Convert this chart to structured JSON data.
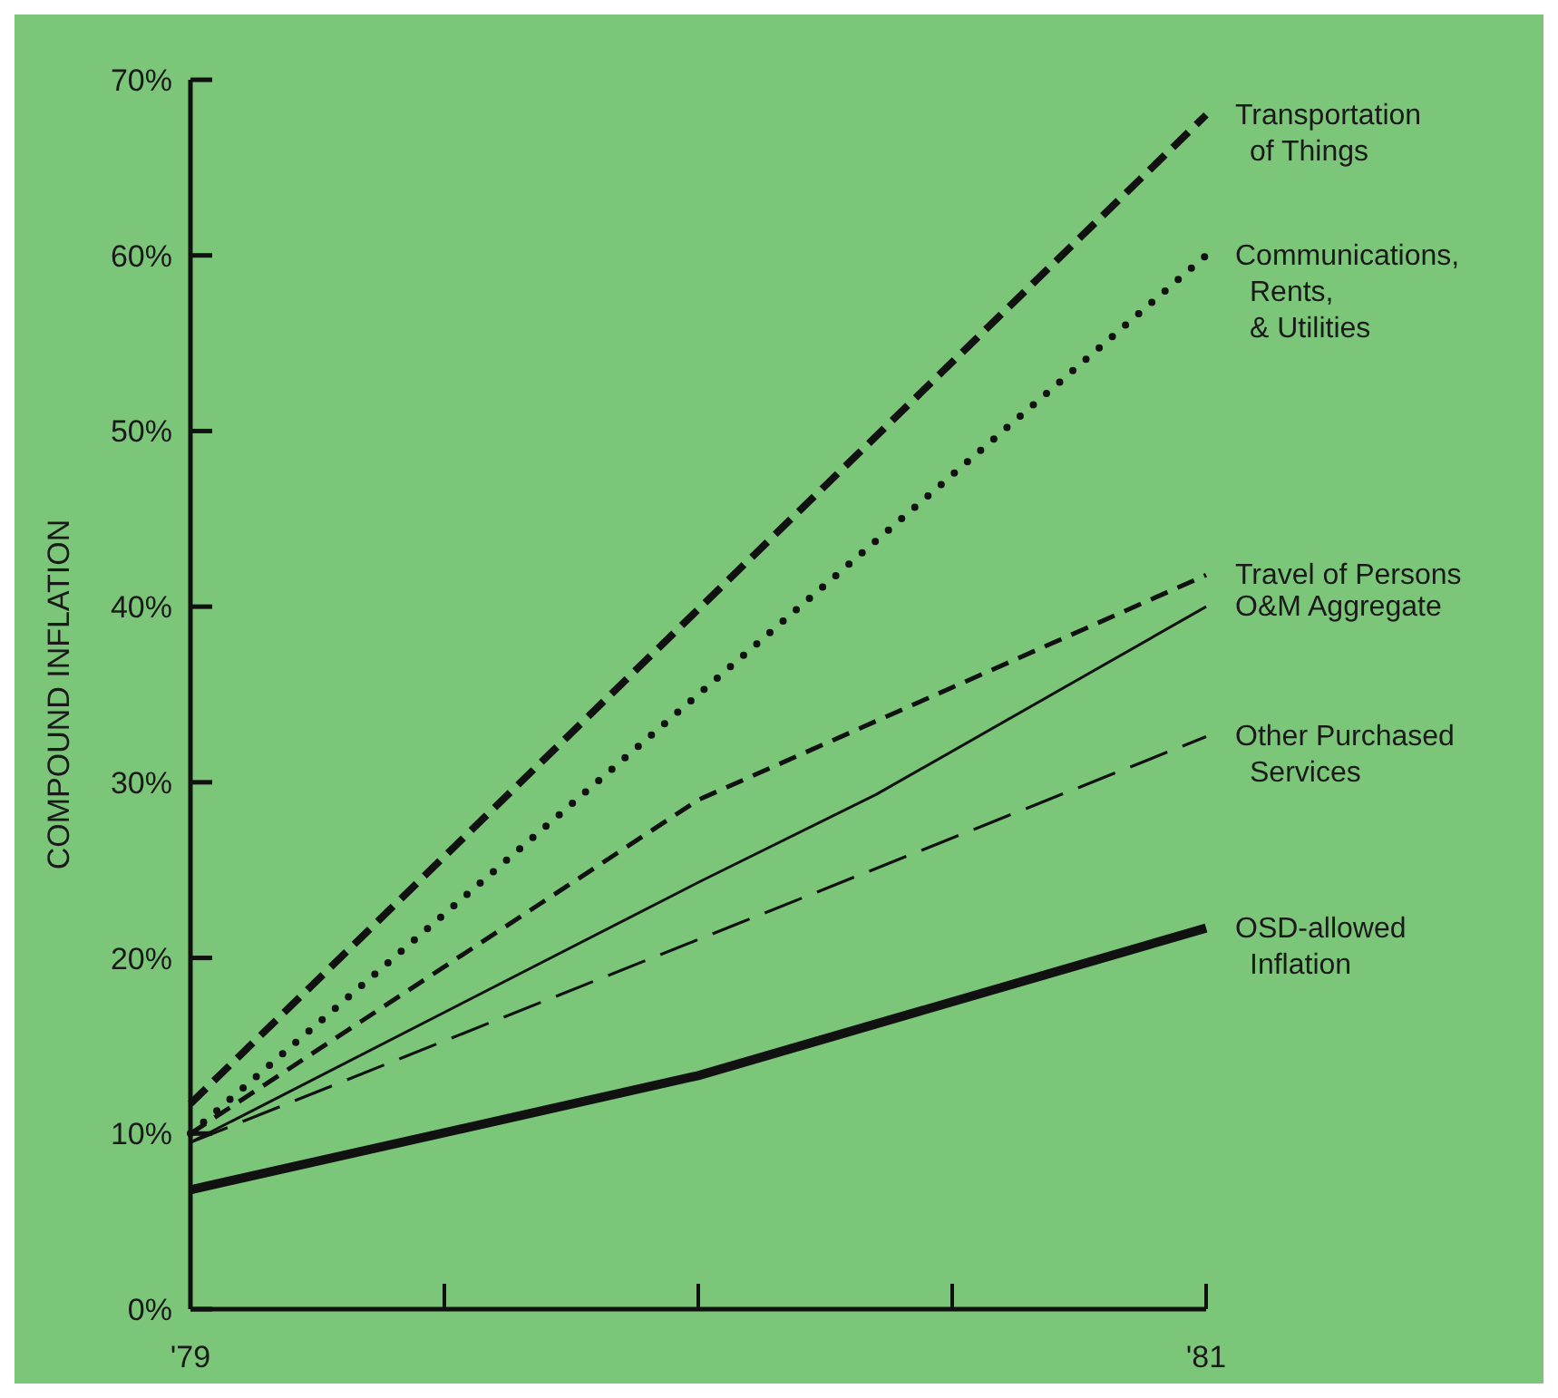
{
  "chart_data": {
    "type": "line",
    "ylabel": "COMPOUND INFLATION",
    "xlim": [
      1979,
      1981
    ],
    "xticks": [
      {
        "value": 1979,
        "label": "'79"
      },
      {
        "value": 1979.5,
        "label": null
      },
      {
        "value": 1980,
        "label": null
      },
      {
        "value": 1980.5,
        "label": null
      },
      {
        "value": 1981,
        "label": "'81"
      }
    ],
    "ylim": [
      0,
      70
    ],
    "yticks": [
      {
        "value": 0,
        "label": "0%"
      },
      {
        "value": 10,
        "label": "10%"
      },
      {
        "value": 20,
        "label": "20%"
      },
      {
        "value": 30,
        "label": "30%"
      },
      {
        "value": 40,
        "label": "40%"
      },
      {
        "value": 50,
        "label": "50%"
      },
      {
        "value": 60,
        "label": "60%"
      },
      {
        "value": 70,
        "label": "70%"
      }
    ],
    "grid": false,
    "marker": "none",
    "series": [
      {
        "name": "Transportation\nof Things",
        "color": "#111111",
        "line_style": "dashed",
        "x": [
          1979,
          1981
        ],
        "values": [
          11.7,
          68
        ]
      },
      {
        "name": "Communications,\nRents,\n& Utilities",
        "color": "#111111",
        "line_style": "dotted",
        "x": [
          1979,
          1981
        ],
        "values": [
          10,
          60
        ]
      },
      {
        "name": "Travel of Persons",
        "color": "#111111",
        "line_style": "dashed",
        "x": [
          1979,
          1980,
          1981
        ],
        "values": [
          10,
          29,
          41.8
        ]
      },
      {
        "name": "O&M Aggregate",
        "color": "#111111",
        "line_style": "solid",
        "x": [
          1979,
          1980,
          1980.35,
          1981
        ],
        "values": [
          9.5,
          24.3,
          29.3,
          40
        ]
      },
      {
        "name": "Other Purchased\nServices",
        "color": "#111111",
        "line_style": "dashed",
        "x": [
          1979,
          1981
        ],
        "values": [
          9.5,
          32.6
        ]
      },
      {
        "name": "OSD-allowed\nInflation",
        "color": "#111111",
        "line_style": "solid",
        "x": [
          1979,
          1980,
          1981
        ],
        "values": [
          6.8,
          13.3,
          21.7
        ]
      }
    ]
  }
}
